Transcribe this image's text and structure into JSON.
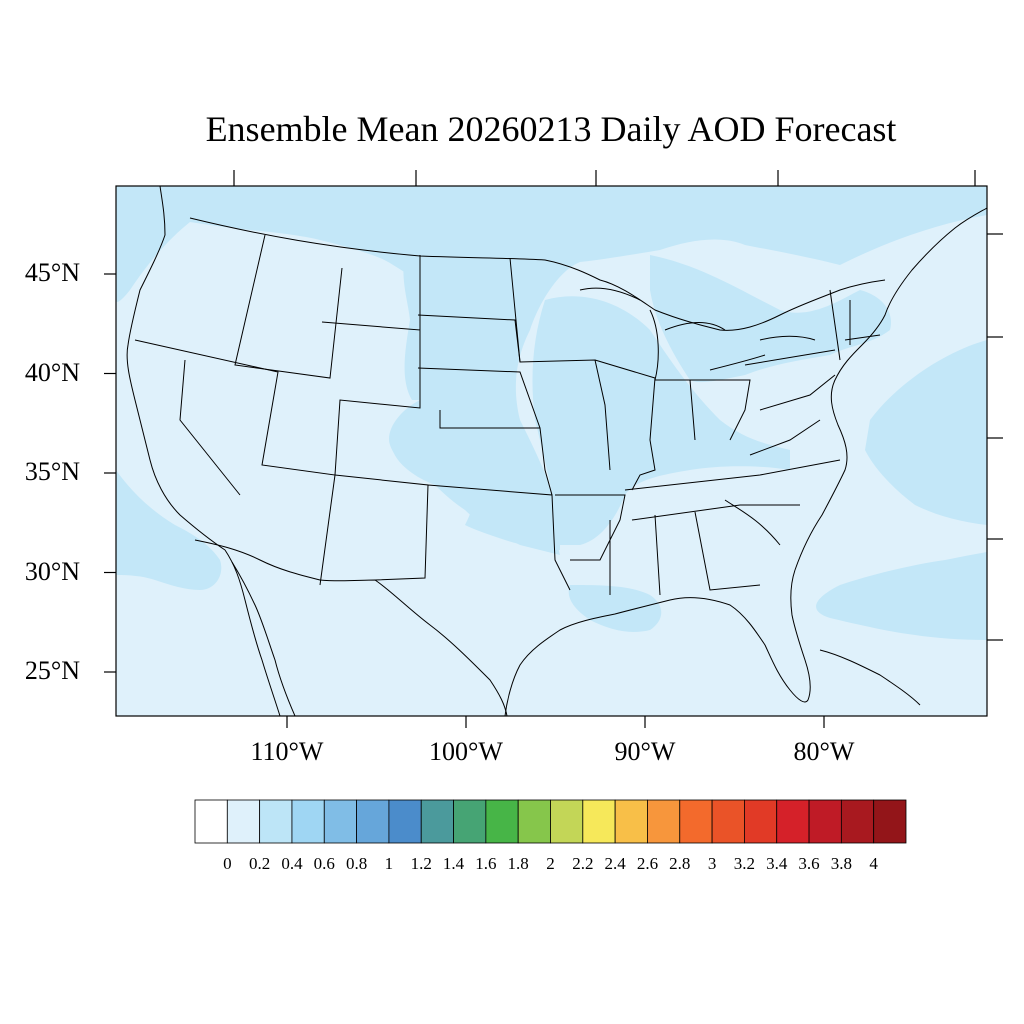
{
  "title": "Ensemble Mean 20260213 Daily AOD Forecast",
  "map": {
    "lat_ticks": [
      {
        "label": "45°N",
        "lat": 45
      },
      {
        "label": "40°N",
        "lat": 40
      },
      {
        "label": "35°N",
        "lat": 35
      },
      {
        "label": "30°N",
        "lat": 30
      },
      {
        "label": "25°N",
        "lat": 25
      }
    ],
    "lon_ticks": [
      {
        "label": "110°W",
        "lon": -110
      },
      {
        "label": "100°W",
        "lon": -100
      },
      {
        "label": "90°W",
        "lon": -90
      },
      {
        "label": "80°W",
        "lon": -80
      }
    ],
    "extent": {
      "lon_min": -119,
      "lon_max": -71,
      "lat_min": 22.5,
      "lat_max": 49
    }
  },
  "colorbar": {
    "labels": [
      "0",
      "0.2",
      "0.4",
      "0.6",
      "0.8",
      "1",
      "1.2",
      "1.4",
      "1.6",
      "1.8",
      "2",
      "2.2",
      "2.4",
      "2.6",
      "2.8",
      "3",
      "3.2",
      "3.4",
      "3.6",
      "3.8",
      "4"
    ],
    "colors": [
      "#ffffff",
      "#dff1fb",
      "#bde5f7",
      "#9fd6f3",
      "#80bde6",
      "#66a6da",
      "#4b8ccb",
      "#4b9a9c",
      "#46a474",
      "#47b547",
      "#86c64b",
      "#c3d657",
      "#f6e85a",
      "#f8bf48",
      "#f7963c",
      "#f36a2c",
      "#ea5328",
      "#e13a26",
      "#d52129",
      "#bf1b26",
      "#a8191f",
      "#931519"
    ]
  },
  "colors": {
    "aod_0_2": "#dff1fb",
    "aod_0_4": "#c3e7f8",
    "outline": "#000000"
  }
}
